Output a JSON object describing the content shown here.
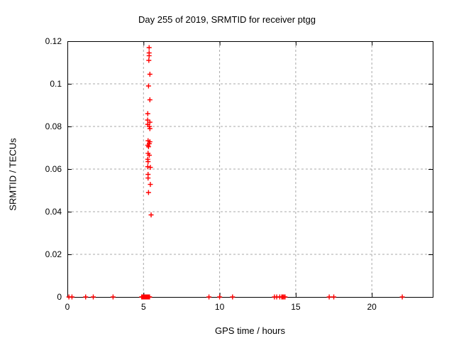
{
  "chart_data": {
    "type": "scatter",
    "title": "Day 255 of 2019, SRMTID for receiver ptgg",
    "xlabel": "GPS time / hours",
    "ylabel": "SRMTID / TECUs",
    "xlim": [
      0,
      24
    ],
    "ylim": [
      0,
      0.12
    ],
    "x_ticks": [
      0,
      5,
      10,
      15,
      20
    ],
    "y_ticks": [
      0,
      0.02,
      0.04,
      0.06,
      0.08,
      0.1,
      0.12
    ],
    "grid": true,
    "legend": "none",
    "marker": "plus",
    "colors": {
      "marker": "#ff0000",
      "grid": "#a8a8a8",
      "border": "#000000",
      "background": "#ffffff",
      "text": "#000000"
    },
    "series": [
      {
        "name": "SRMTID",
        "points": [
          [
            0.1,
            0
          ],
          [
            0.3,
            0
          ],
          [
            1.2,
            0
          ],
          [
            1.7,
            0
          ],
          [
            3.0,
            0
          ],
          [
            4.88,
            0
          ],
          [
            4.92,
            0
          ],
          [
            4.96,
            0
          ],
          [
            5.0,
            0
          ],
          [
            5.04,
            0
          ],
          [
            5.08,
            0
          ],
          [
            5.12,
            0
          ],
          [
            5.16,
            0
          ],
          [
            5.2,
            0
          ],
          [
            5.24,
            0
          ],
          [
            5.28,
            0
          ],
          [
            5.32,
            0
          ],
          [
            5.36,
            0
          ],
          [
            5.4,
            0
          ],
          [
            9.3,
            0
          ],
          [
            10.0,
            0
          ],
          [
            10.85,
            0
          ],
          [
            13.6,
            0
          ],
          [
            13.75,
            0
          ],
          [
            13.95,
            0
          ],
          [
            14.08,
            0
          ],
          [
            14.15,
            0
          ],
          [
            14.22,
            0
          ],
          [
            14.3,
            0
          ],
          [
            17.2,
            0
          ],
          [
            17.5,
            0
          ],
          [
            22.0,
            0
          ],
          [
            5.37,
            0.117
          ],
          [
            5.37,
            0.1145
          ],
          [
            5.37,
            0.1132
          ],
          [
            5.35,
            0.111
          ],
          [
            5.42,
            0.1045
          ],
          [
            5.33,
            0.099
          ],
          [
            5.42,
            0.0925
          ],
          [
            5.28,
            0.086
          ],
          [
            5.27,
            0.083
          ],
          [
            5.42,
            0.082
          ],
          [
            5.28,
            0.081
          ],
          [
            5.38,
            0.08
          ],
          [
            5.42,
            0.079
          ],
          [
            5.3,
            0.0733
          ],
          [
            5.42,
            0.0728
          ],
          [
            5.38,
            0.0719
          ],
          [
            5.28,
            0.0712
          ],
          [
            5.33,
            0.0705
          ],
          [
            5.3,
            0.0674
          ],
          [
            5.38,
            0.0665
          ],
          [
            5.28,
            0.0646
          ],
          [
            5.3,
            0.0635
          ],
          [
            5.28,
            0.0611
          ],
          [
            5.45,
            0.0608
          ],
          [
            5.3,
            0.0575
          ],
          [
            5.3,
            0.0558
          ],
          [
            5.45,
            0.0528
          ],
          [
            5.33,
            0.049
          ],
          [
            5.5,
            0.0385
          ]
        ]
      }
    ]
  }
}
